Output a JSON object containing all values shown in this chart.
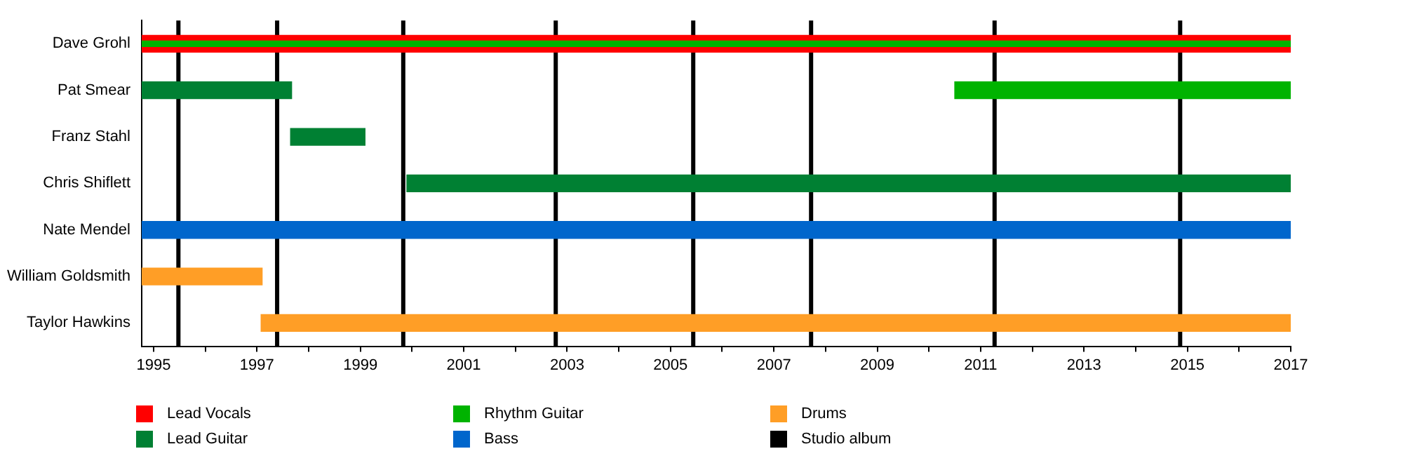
{
  "chart_data": {
    "type": "bar",
    "orientation": "horizontal",
    "categories": [
      "Dave Grohl",
      "Pat Smear",
      "Franz Stahl",
      "Chris Shiflett",
      "Nate Mendel",
      "William Goldsmith",
      "Taylor Hawkins"
    ],
    "series": [
      {
        "name": "Lead Vocals",
        "color": "#ff0000",
        "values": [
          22.23,
          null,
          null,
          null,
          null,
          null,
          null
        ],
        "base": [
          1994.77,
          null,
          null,
          null,
          null,
          null,
          null
        ]
      },
      {
        "name": "Lead Guitar",
        "color": "#008033",
        "values": [
          null,
          2.9,
          1.44,
          17.1,
          null,
          null,
          null
        ],
        "base": [
          null,
          1994.77,
          1997.65,
          1999.9,
          null,
          null,
          null
        ]
      },
      {
        "name": "Rhythm Guitar",
        "color": "#00b300",
        "values": [
          22.23,
          6.5,
          null,
          null,
          null,
          null,
          null
        ],
        "base": [
          1994.77,
          2010.5,
          null,
          null,
          null,
          null,
          null
        ]
      },
      {
        "name": "Bass",
        "color": "#0066cc",
        "values": [
          null,
          null,
          null,
          null,
          22.23,
          null,
          null
        ],
        "base": [
          null,
          null,
          null,
          null,
          1994.77,
          null,
          null
        ]
      },
      {
        "name": "Drums",
        "color": "#ff9e26",
        "values": [
          null,
          null,
          null,
          null,
          null,
          2.33,
          19.92
        ],
        "base": [
          null,
          null,
          null,
          null,
          null,
          1994.77,
          1997.08
        ]
      }
    ],
    "ref_lines": [
      {
        "axis": "x",
        "value": 1995.48,
        "label": "Studio album",
        "color": "#000000"
      },
      {
        "axis": "x",
        "value": 1997.39,
        "color": "#000000"
      },
      {
        "axis": "x",
        "value": 1999.83,
        "color": "#000000"
      },
      {
        "axis": "x",
        "value": 2002.78,
        "color": "#000000"
      },
      {
        "axis": "x",
        "value": 2005.44,
        "color": "#000000"
      },
      {
        "axis": "x",
        "value": 2007.72,
        "color": "#000000"
      },
      {
        "axis": "x",
        "value": 2011.27,
        "color": "#000000"
      },
      {
        "axis": "x",
        "value": 2014.86,
        "color": "#000000"
      }
    ],
    "xlim": [
      1994.77,
      2017
    ],
    "xticks": [
      1995,
      {
        "value": 1996,
        "label": null
      },
      1997,
      {
        "value": 1998,
        "label": null
      },
      1999,
      {
        "value": 2000,
        "label": null
      },
      2001,
      {
        "value": 2002,
        "label": null
      },
      2003,
      {
        "value": 2004,
        "label": null
      },
      2005,
      {
        "value": 2006,
        "label": null
      },
      2007,
      {
        "value": 2008,
        "label": null
      },
      2009,
      {
        "value": 2010,
        "label": null
      },
      2011,
      {
        "value": 2012,
        "label": null
      },
      2013,
      {
        "value": 2014,
        "label": null
      },
      2015,
      {
        "value": 2016,
        "label": null
      },
      2017
    ],
    "grid": false,
    "legend": "bottom left"
  }
}
